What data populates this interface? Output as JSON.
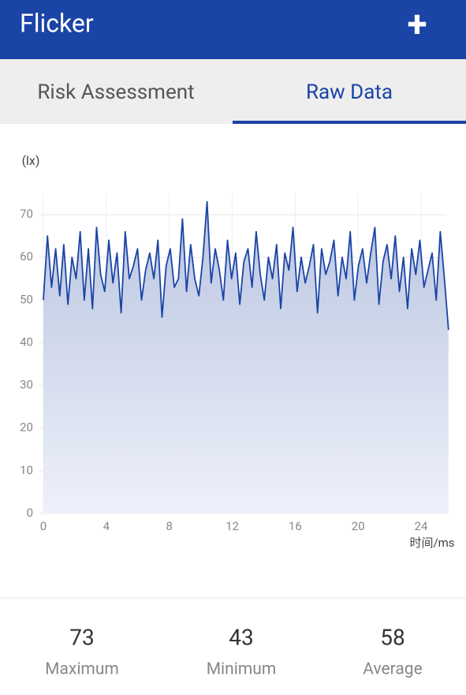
{
  "header": {
    "title": "Flicker",
    "action": "+"
  },
  "tabs": [
    "Risk Assessment",
    "Raw Data"
  ],
  "chart_data": {
    "type": "line",
    "y_unit": "(lx)",
    "x_label": "时间/ms",
    "color": "#1a44a6",
    "x": [
      0,
      0.26,
      0.52,
      0.78,
      1.04,
      1.3,
      1.56,
      1.82,
      2.08,
      2.34,
      2.6,
      2.86,
      3.12,
      3.38,
      3.64,
      3.9,
      4.16,
      4.42,
      4.68,
      4.94,
      5.2,
      5.46,
      5.72,
      5.98,
      6.24,
      6.5,
      6.76,
      7.02,
      7.28,
      7.54,
      7.8,
      8.06,
      8.32,
      8.58,
      8.84,
      9.1,
      9.36,
      9.62,
      9.88,
      10.14,
      10.4,
      10.66,
      10.92,
      11.18,
      11.44,
      11.7,
      11.96,
      12.22,
      12.48,
      12.74,
      13,
      13.26,
      13.52,
      13.78,
      14.04,
      14.3,
      14.56,
      14.82,
      15.08,
      15.34,
      15.6,
      15.86,
      16.12,
      16.38,
      16.64,
      16.9,
      17.16,
      17.42,
      17.68,
      17.94,
      18.2,
      18.46,
      18.72,
      18.98,
      19.24,
      19.5,
      19.76,
      20.02,
      20.28,
      20.54,
      20.8,
      21.06,
      21.32,
      21.58,
      21.84,
      22.1,
      22.36,
      22.62,
      22.88,
      23.14,
      23.4,
      23.66,
      23.92,
      24.18,
      24.44,
      24.7,
      24.96,
      25.22,
      25.48,
      25.74
    ],
    "values": [
      50,
      65,
      53,
      62,
      51,
      63,
      49,
      60,
      55,
      66,
      50,
      62,
      48,
      67,
      56,
      52,
      64,
      54,
      61,
      47,
      66,
      55,
      58,
      62,
      50,
      57,
      61,
      55,
      64,
      46,
      58,
      62,
      53,
      55,
      69,
      52,
      63,
      55,
      51,
      60,
      73,
      54,
      62,
      57,
      50,
      64,
      55,
      61,
      49,
      59,
      62,
      53,
      66,
      56,
      50,
      60,
      55,
      63,
      48,
      61,
      57,
      67,
      52,
      60,
      54,
      58,
      63,
      47,
      62,
      56,
      59,
      64,
      51,
      60,
      55,
      66,
      50,
      58,
      62,
      54,
      61,
      67,
      49,
      59,
      63,
      55,
      65,
      52,
      60,
      48,
      62,
      56,
      64,
      53,
      57,
      61,
      50,
      66,
      55,
      43
    ],
    "xlim": [
      -0.25,
      25.6
    ],
    "xticks": [
      0,
      4,
      8,
      12,
      16,
      20,
      24
    ],
    "ylim": [
      0,
      75
    ],
    "yticks": [
      0,
      10,
      20,
      30,
      40,
      50,
      60,
      70
    ],
    "grid": true
  },
  "stats": [
    {
      "value": 73,
      "label": "Maximum"
    },
    {
      "value": 43,
      "label": "Minimum"
    },
    {
      "value": 58,
      "label": "Average"
    }
  ]
}
